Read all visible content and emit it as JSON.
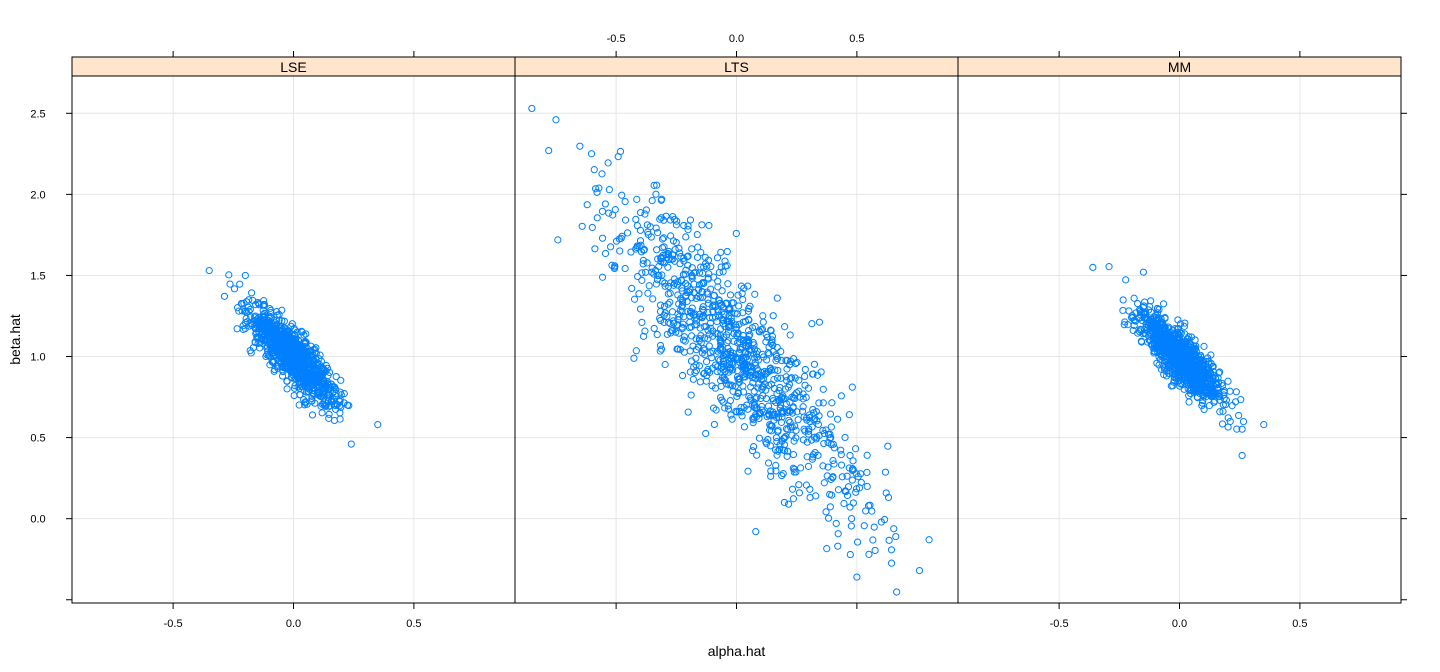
{
  "chart_data": {
    "type": "scatter",
    "layout": "trellis 3 panels side by side",
    "xlabel": "alpha.hat",
    "ylabel": "beta.hat",
    "xlim": [
      -0.92,
      0.92
    ],
    "ylim": [
      -0.52,
      2.73
    ],
    "x_ticks": [
      -0.5,
      0.0,
      0.5
    ],
    "x_tick_labels": [
      "-0.5",
      "0.0",
      "0.5"
    ],
    "y_ticks": [
      0.0,
      0.5,
      1.0,
      1.5,
      2.0,
      2.5
    ],
    "y_tick_labels": [
      "0.0",
      "0.5",
      "1.0",
      "1.5",
      "2.0",
      "2.5"
    ],
    "grid": true,
    "point_color": "#0080ff",
    "strip_color": "#ffe5cc",
    "panels": [
      {
        "label": "LSE",
        "n_points": 1000,
        "x_mean": 0.0,
        "x_sd": 0.09,
        "y_mean": 1.0,
        "y_sd": 0.15,
        "correlation": -0.85,
        "extremes": [
          [
            -0.35,
            1.53
          ],
          [
            0.35,
            0.58
          ],
          [
            0.24,
            0.46
          ],
          [
            -0.2,
            1.5
          ]
        ]
      },
      {
        "label": "LTS",
        "n_points": 1000,
        "x_mean": 0.0,
        "x_sd": 0.26,
        "y_mean": 1.0,
        "y_sd": 0.48,
        "correlation": -0.87,
        "extremes": [
          [
            -0.85,
            2.53
          ],
          [
            -0.75,
            2.46
          ],
          [
            -0.78,
            2.27
          ],
          [
            0.5,
            -0.36
          ],
          [
            0.76,
            -0.32
          ],
          [
            0.8,
            -0.13
          ],
          [
            0.08,
            -0.08
          ],
          [
            0.55,
            -0.22
          ]
        ]
      },
      {
        "label": "MM",
        "n_points": 1000,
        "x_mean": 0.0,
        "x_sd": 0.09,
        "y_mean": 1.0,
        "y_sd": 0.15,
        "correlation": -0.85,
        "extremes": [
          [
            -0.36,
            1.55
          ],
          [
            0.35,
            0.58
          ],
          [
            0.26,
            0.39
          ],
          [
            -0.15,
            1.52
          ]
        ]
      }
    ]
  }
}
